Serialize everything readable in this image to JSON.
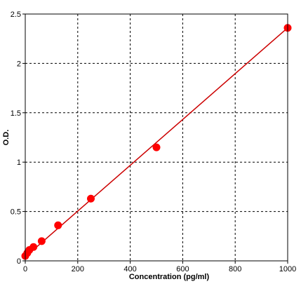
{
  "chart_data": {
    "type": "scatter",
    "title": "",
    "xlabel": "Concentration (pg/ml)",
    "ylabel": "O.D.",
    "xlim": [
      0,
      1000
    ],
    "ylim": [
      0,
      2.5
    ],
    "grid": true,
    "x_ticks": [
      0,
      200,
      400,
      600,
      800,
      1000
    ],
    "x_tick_labels": [
      "0",
      "200",
      "400",
      "600",
      "800",
      "1000"
    ],
    "y_ticks": [
      0,
      0.5,
      1,
      1.5,
      2,
      2.5
    ],
    "y_tick_labels": [
      "0",
      "0.5",
      "1",
      "1.5",
      "2",
      "2.5"
    ],
    "series": [
      {
        "x": [
          0,
          7.8,
          15.6,
          31.2,
          62.5,
          125,
          250,
          500,
          1000
        ],
        "y": [
          0.05,
          0.08,
          0.11,
          0.14,
          0.2,
          0.36,
          0.63,
          1.15,
          2.36
        ],
        "marker_color": "#ff0000"
      }
    ],
    "fit_line": {
      "x": [
        0,
        1000
      ],
      "y": [
        0.04,
        2.36
      ],
      "color": "#cc0000"
    }
  }
}
